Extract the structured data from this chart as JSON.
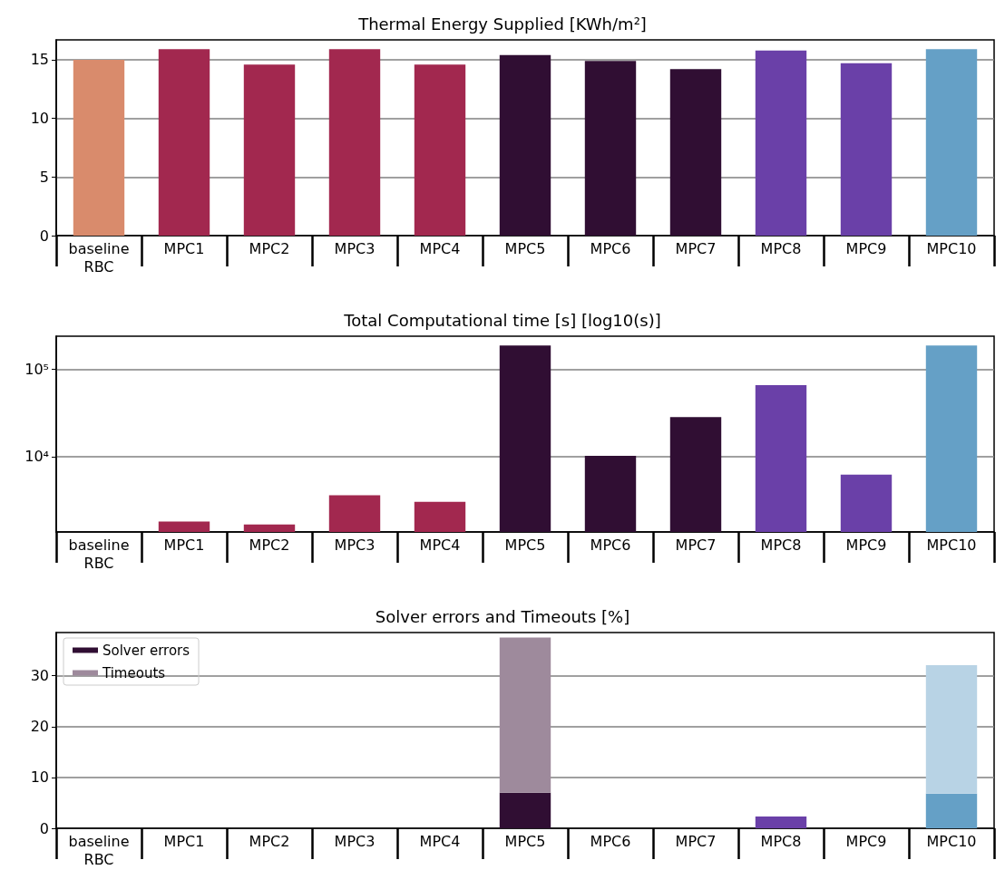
{
  "chart_data": [
    {
      "type": "bar",
      "title": "Thermal Energy Supplied [KWh/m²]",
      "categories": [
        "baseline\nRBC",
        "MPC1",
        "MPC2",
        "MPC3",
        "MPC4",
        "MPC5",
        "MPC6",
        "MPC7",
        "MPC8",
        "MPC9",
        "MPC10"
      ],
      "values": [
        15.0,
        15.9,
        14.6,
        15.9,
        14.6,
        15.4,
        14.9,
        14.2,
        15.8,
        14.7,
        15.9
      ],
      "colors": [
        "#d98b6c",
        "#a2284f",
        "#a2284f",
        "#a2284f",
        "#a2284f",
        "#300e33",
        "#300e33",
        "#300e33",
        "#6a40a8",
        "#6a40a8",
        "#65a0c6"
      ],
      "ylim": [
        0,
        16.7
      ],
      "yticks": [
        0,
        5,
        10,
        15
      ],
      "grid": "y",
      "legend": false
    },
    {
      "type": "bar",
      "title": "Total Computational time [s] [log10(s)]",
      "categories": [
        "baseline\nRBC",
        "MPC1",
        "MPC2",
        "MPC3",
        "MPC4",
        "MPC5",
        "MPC6",
        "MPC7",
        "MPC8",
        "MPC9",
        "MPC10"
      ],
      "values": [
        null,
        1810,
        1680,
        3620,
        3050,
        186000,
        10200,
        28300,
        65600,
        6250,
        186000
      ],
      "colors": [
        "#d98b6c",
        "#a2284f",
        "#a2284f",
        "#a2284f",
        "#a2284f",
        "#300e33",
        "#300e33",
        "#300e33",
        "#6a40a8",
        "#6a40a8",
        "#65a0c6"
      ],
      "log": true,
      "ylim": [
        1380,
        238000
      ],
      "yticks": [
        {
          "value": 10000,
          "label": "10⁴"
        },
        {
          "value": 100000,
          "label": "10⁵"
        }
      ],
      "grid": "y",
      "legend": false
    },
    {
      "type": "bar",
      "title": "Solver errors and Timeouts [%]",
      "categories": [
        "baseline\nRBC",
        "MPC1",
        "MPC2",
        "MPC3",
        "MPC4",
        "MPC5",
        "MPC6",
        "MPC7",
        "MPC8",
        "MPC9",
        "MPC10"
      ],
      "stacked": true,
      "series": [
        {
          "name": "Solver errors",
          "color": "#300e33",
          "values": [
            0,
            0,
            0,
            0,
            0,
            7.0,
            0,
            0,
            2.3,
            0,
            6.8
          ],
          "colors": [
            "#d98b6c",
            "#a2284f",
            "#a2284f",
            "#a2284f",
            "#a2284f",
            "#300e33",
            "#300e33",
            "#300e33",
            "#6a40a8",
            "#6a40a8",
            "#65a0c6"
          ]
        },
        {
          "name": "Timeouts",
          "color": "#9e8a9c",
          "values": [
            0,
            0,
            0,
            0,
            0,
            30.5,
            0,
            0,
            0,
            0,
            25.3
          ],
          "colors": [
            "#e8b9a6",
            "#c97e95",
            "#c97e95",
            "#c97e95",
            "#c97e95",
            "#9e8a9c",
            "#9e8a9c",
            "#9e8a9c",
            "#a58cca",
            "#a58cca",
            "#b8d3e5"
          ]
        }
      ],
      "ylim": [
        0,
        38.5
      ],
      "yticks": [
        0,
        10,
        20,
        30
      ],
      "grid": "y",
      "legend": "top left"
    }
  ]
}
